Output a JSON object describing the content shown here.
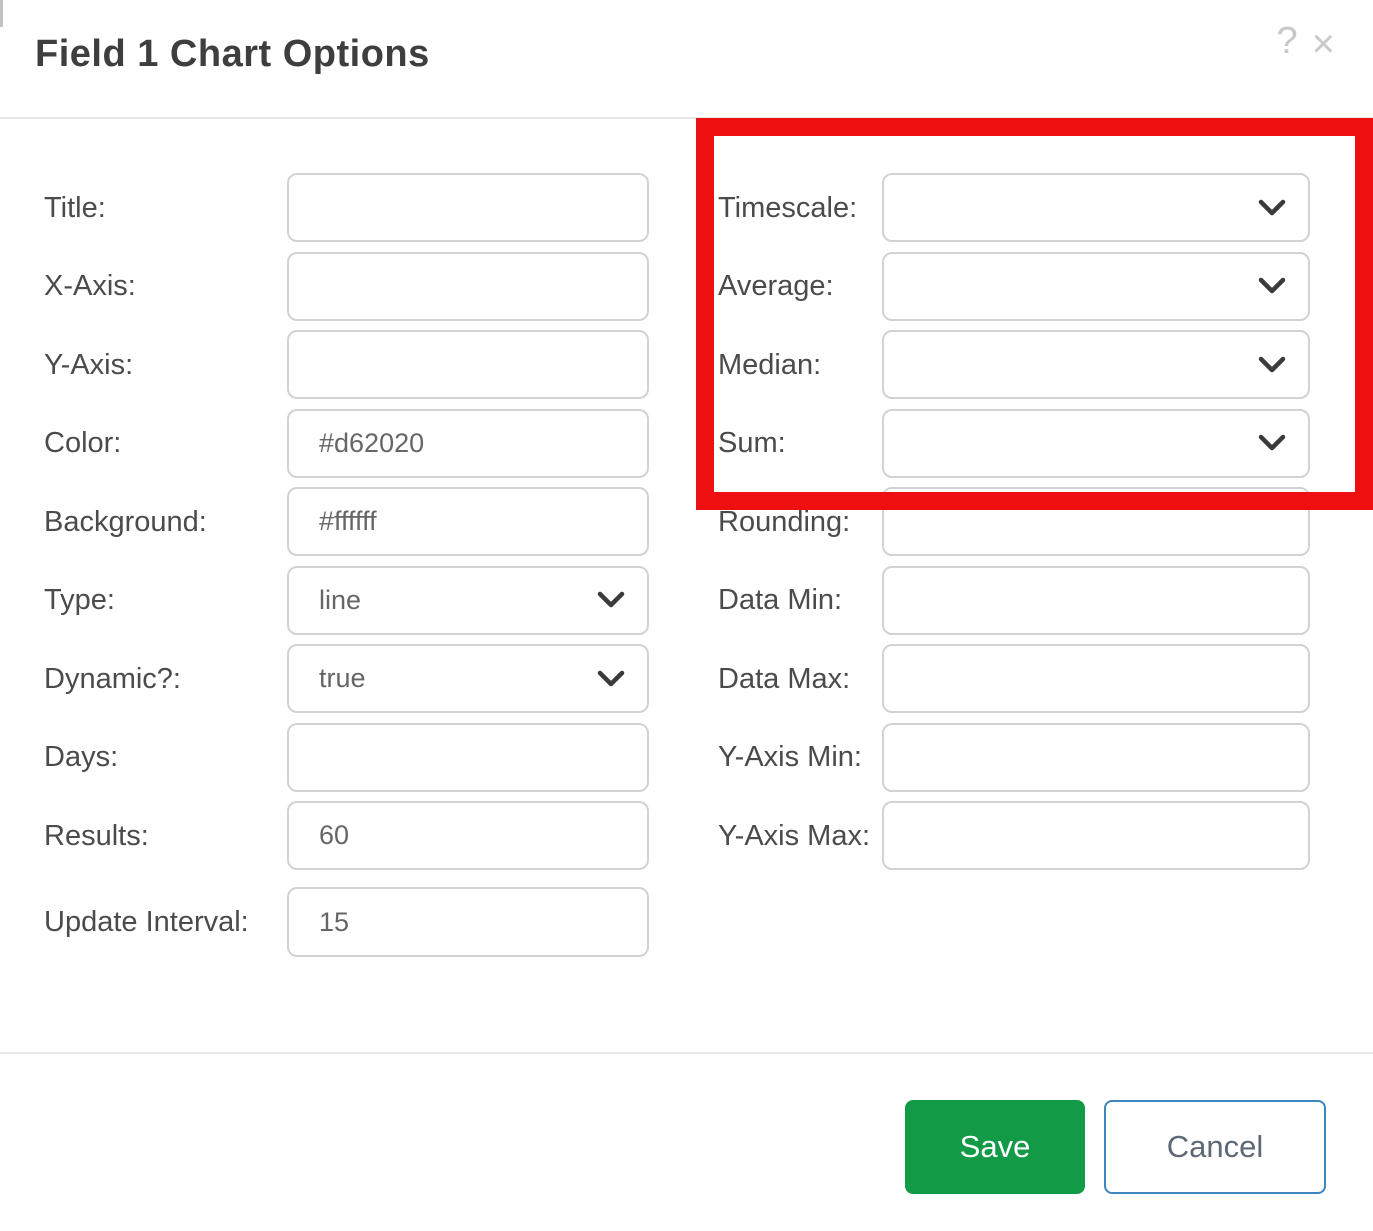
{
  "dialog": {
    "title": "Field 1 Chart Options",
    "help_icon": "?",
    "close_icon": "×"
  },
  "left_fields": [
    {
      "label": "Title:",
      "value": "",
      "control": "input"
    },
    {
      "label": "X-Axis:",
      "value": "",
      "control": "input"
    },
    {
      "label": "Y-Axis:",
      "value": "",
      "control": "input"
    },
    {
      "label": "Color:",
      "value": "#d62020",
      "control": "input"
    },
    {
      "label": "Background:",
      "value": "#ffffff",
      "control": "input"
    },
    {
      "label": "Type:",
      "value": "line",
      "control": "select"
    },
    {
      "label": "Dynamic?:",
      "value": "true",
      "control": "select"
    },
    {
      "label": "Days:",
      "value": "",
      "control": "input"
    },
    {
      "label": "Results:",
      "value": "60",
      "control": "input"
    },
    {
      "label": "Update Interval:",
      "value": "15",
      "control": "input"
    }
  ],
  "right_fields": [
    {
      "label": "Timescale:",
      "value": "",
      "control": "select"
    },
    {
      "label": "Average:",
      "value": "",
      "control": "select"
    },
    {
      "label": "Median:",
      "value": "",
      "control": "select"
    },
    {
      "label": "Sum:",
      "value": "",
      "control": "select"
    },
    {
      "label": "Rounding:",
      "value": "",
      "control": "input"
    },
    {
      "label": "Data Min:",
      "value": "",
      "control": "input"
    },
    {
      "label": "Data Max:",
      "value": "",
      "control": "input"
    },
    {
      "label": "Y-Axis Min:",
      "value": "",
      "control": "input"
    },
    {
      "label": "Y-Axis Max:",
      "value": "",
      "control": "input"
    }
  ],
  "buttons": {
    "save": "Save",
    "cancel": "Cancel"
  },
  "annotation": {
    "color": "#ee1010",
    "highlights": "Timescale, Average, Median, Sum dropdowns"
  },
  "colors": {
    "save_green": "#129a47",
    "cancel_border_blue": "#3c87c0",
    "chart_line_color_value": "#d62020",
    "chart_background_value": "#ffffff"
  }
}
